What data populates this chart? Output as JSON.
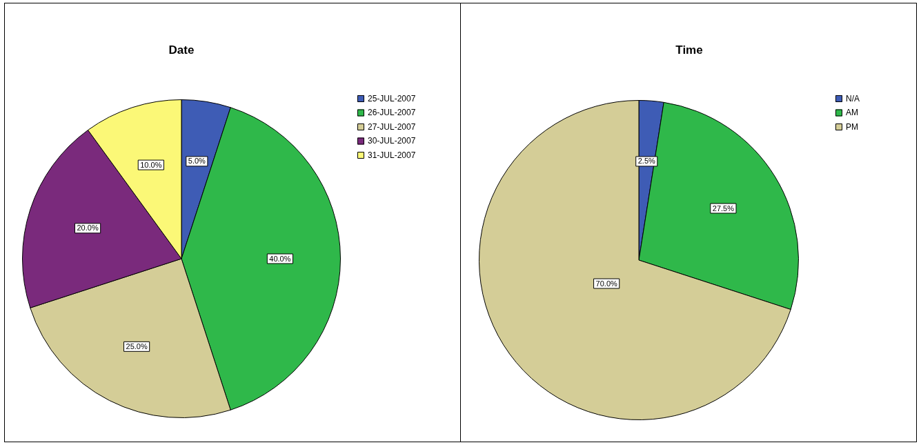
{
  "chart_data": [
    {
      "type": "pie",
      "title": "Date",
      "categories": [
        "25-JUL-2007",
        "26-JUL-2007",
        "27-JUL-2007",
        "30-JUL-2007",
        "31-JUL-2007"
      ],
      "values": [
        5,
        40,
        25,
        20,
        10
      ],
      "colors": [
        "#3e5cb5",
        "#2fb84a",
        "#d4cd97",
        "#7a2a7c",
        "#fbf877"
      ],
      "value_labels": [
        "5.0%",
        "40.0%",
        "25.0%",
        "20.0%",
        "10.0%"
      ],
      "legend": "top right"
    },
    {
      "type": "pie",
      "title": "Time",
      "categories": [
        "N/A",
        "AM",
        "PM"
      ],
      "values": [
        2.5,
        27.5,
        70
      ],
      "colors": [
        "#3e5cb5",
        "#2fb84a",
        "#d4cd97"
      ],
      "value_labels": [
        "2.5%",
        "27.5%",
        "70.0%"
      ],
      "legend": "top right"
    }
  ]
}
